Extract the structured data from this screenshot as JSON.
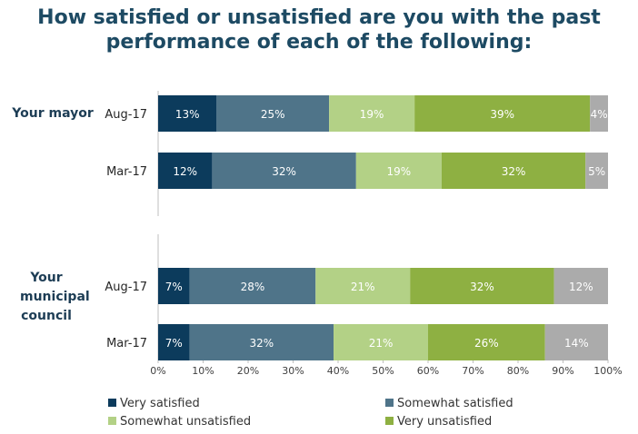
{
  "title_lines": [
    "How satisfied or unsatisfied are you with the past",
    "performance of each of the following:"
  ],
  "groups": [
    "Your mayor",
    "Your municipal council"
  ],
  "colors": {
    "very_satisfied": "#0c3b5c",
    "somewhat_satisfied": "#4f7489",
    "somewhat_unsatisfied": "#b3d186",
    "very_unsatisfied": "#8eb042",
    "remainder": "#ababab"
  },
  "chart_data": {
    "type": "bar",
    "orientation": "horizontal",
    "stacked": true,
    "categories": [
      {
        "group": "Your mayor",
        "label": "Aug-17"
      },
      {
        "group": "Your mayor",
        "label": "Mar-17"
      },
      {
        "group": "Your municipal council",
        "label": "Aug-17"
      },
      {
        "group": "Your municipal council",
        "label": "Mar-17"
      }
    ],
    "series": [
      {
        "name": "Very satisfied",
        "values": [
          13,
          12,
          7,
          7
        ],
        "labels": [
          "13%",
          "12%",
          "7%",
          "7%"
        ]
      },
      {
        "name": "Somewhat satisfied",
        "values": [
          25,
          32,
          28,
          32
        ],
        "labels": [
          "25%",
          "32%",
          "28%",
          "32%"
        ]
      },
      {
        "name": "Somewhat unsatisfied",
        "values": [
          19,
          19,
          21,
          21
        ],
        "labels": [
          "19%",
          "19%",
          "21%",
          "21%"
        ]
      },
      {
        "name": "Very unsatisfied",
        "values": [
          39,
          32,
          32,
          26
        ],
        "labels": [
          "39%",
          "32%",
          "32%",
          "26%"
        ]
      },
      {
        "values": [
          4,
          5,
          12,
          14
        ],
        "labels": [
          "4%",
          "5%",
          "12%",
          "14%"
        ]
      }
    ],
    "xlim": [
      0,
      100
    ],
    "x_ticks": [
      "0%",
      "10%",
      "20%",
      "30%",
      "40%",
      "50%",
      "60%",
      "70%",
      "80%",
      "90%",
      "100%"
    ],
    "legend_position": "bottom"
  }
}
